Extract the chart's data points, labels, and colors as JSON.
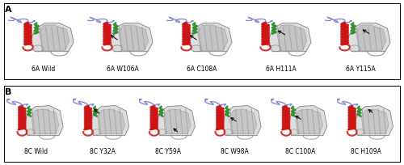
{
  "panel_A_labels": [
    "6A Wild",
    "6A W106A",
    "6A C108A",
    "6A H111A",
    "6A Y115A"
  ],
  "panel_B_labels": [
    "8C Wild",
    "8C Y32A",
    "8C Y59A",
    "8C W98A",
    "8C C100A",
    "8C H109A"
  ],
  "panel_A_letter": "A",
  "panel_B_letter": "B",
  "background_color": "#ffffff",
  "border_color": "#000000",
  "label_fontsize": 5.5,
  "panel_letter_fontsize": 8,
  "gray_body": "#b0b0b0",
  "gray_dark": "#707070",
  "gray_light": "#d8d8d8",
  "red_color": "#cc1111",
  "green_color": "#228822",
  "blue_color": "#7777cc",
  "arrow_color": "#111111",
  "figure_width": 5.0,
  "figure_height": 2.04,
  "panel_A_arrows": [
    false,
    true,
    true,
    true,
    true
  ],
  "panel_B_arrows": [
    false,
    true,
    true,
    true,
    true,
    true
  ]
}
